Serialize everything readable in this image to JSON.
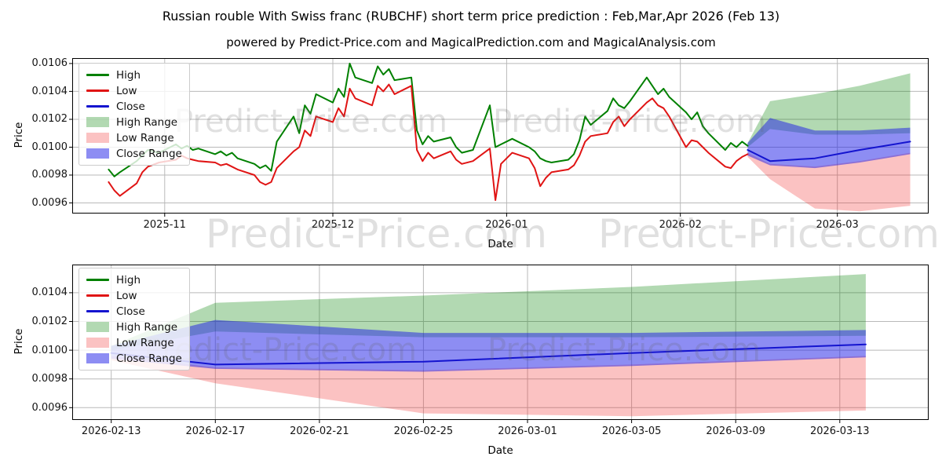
{
  "title": "Russian rouble With Swiss franc (RUBCHF) short term price prediction : Feb,Mar,Apr 2026 (Feb 13)",
  "subtitle": "powered by Predict-Price.com and MagicalPrediction.com and MagicalAnalysis.com",
  "watermark_text": "Predict-Price.com",
  "colors": {
    "high_line": "#008000",
    "low_line": "#e01414",
    "close_line": "#1414cf",
    "high_band": "rgba(0,128,0,0.30)",
    "low_band": "rgba(242,30,30,0.27)",
    "close_band": "rgba(28,28,232,0.50)",
    "grid": "#b9b9b9",
    "spine": "#000000"
  },
  "legend": {
    "items": [
      {
        "label": "High",
        "type": "line",
        "color": "#008000"
      },
      {
        "label": "Low",
        "type": "line",
        "color": "#e01414"
      },
      {
        "label": "Close",
        "type": "line",
        "color": "#1414cf"
      },
      {
        "label": "High Range",
        "type": "patch",
        "color": "rgba(0,128,0,0.30)"
      },
      {
        "label": "Low Range",
        "type": "patch",
        "color": "rgba(242,30,30,0.27)"
      },
      {
        "label": "Close Range",
        "type": "patch",
        "color": "rgba(28,28,232,0.50)"
      }
    ]
  },
  "chart_data": [
    {
      "type": "line",
      "name": "price-history-with-forecast",
      "xlabel": "Date",
      "ylabel": "Price",
      "grid": true,
      "legend_position": "upper left",
      "xdomain": [
        "2025-10-15T12:00:00Z",
        "2026-03-17T07:00:00Z"
      ],
      "ydomain": [
        0.009524,
        0.010639
      ],
      "yticks": [
        0.0096,
        0.0098,
        0.01,
        0.0102,
        0.0104,
        0.0106
      ],
      "ytick_labels": [
        "0.0096",
        "0.0098",
        "0.0100",
        "0.0102",
        "0.0104",
        "0.0106"
      ],
      "xticks": [
        "2025-11-01",
        "2025-12-01",
        "2026-01-01",
        "2026-02-01",
        "2026-03-01"
      ],
      "xtick_labels": [
        "2025-11",
        "2025-12",
        "2026-01",
        "2026-02",
        "2026-03"
      ],
      "series": {
        "history": {
          "dates": [
            "2025-10-22",
            "2025-10-23",
            "2025-10-24",
            "2025-10-27",
            "2025-10-28",
            "2025-10-29",
            "2025-10-31",
            "2025-11-03",
            "2025-11-04",
            "2025-11-05",
            "2025-11-06",
            "2025-11-07",
            "2025-11-10",
            "2025-11-11",
            "2025-11-12",
            "2025-11-13",
            "2025-11-14",
            "2025-11-17",
            "2025-11-18",
            "2025-11-19",
            "2025-11-20",
            "2025-11-21",
            "2025-11-24",
            "2025-11-25",
            "2025-11-26",
            "2025-11-27",
            "2025-11-28",
            "2025-12-01",
            "2025-12-02",
            "2025-12-03",
            "2025-12-04",
            "2025-12-05",
            "2025-12-08",
            "2025-12-09",
            "2025-12-10",
            "2025-12-11",
            "2025-12-12",
            "2025-12-15",
            "2025-12-16",
            "2025-12-17",
            "2025-12-18",
            "2025-12-19",
            "2025-12-22",
            "2025-12-23",
            "2025-12-24",
            "2025-12-26",
            "2025-12-29",
            "2025-12-30",
            "2025-12-31",
            "2026-01-02",
            "2026-01-05",
            "2026-01-06",
            "2026-01-07",
            "2026-01-08",
            "2026-01-09",
            "2026-01-12",
            "2026-01-13",
            "2026-01-14",
            "2026-01-15",
            "2026-01-16",
            "2026-01-19",
            "2026-01-20",
            "2026-01-21",
            "2026-01-22",
            "2026-01-23",
            "2026-01-26",
            "2026-01-27",
            "2026-01-28",
            "2026-01-29",
            "2026-01-30",
            "2026-02-02",
            "2026-02-03",
            "2026-02-04",
            "2026-02-05",
            "2026-02-06",
            "2026-02-09",
            "2026-02-10",
            "2026-02-11",
            "2026-02-12",
            "2026-02-13"
          ],
          "high": [
            0.00984,
            0.00979,
            0.00982,
            0.0099,
            0.00994,
            0.00998,
            0.00996,
            0.01002,
            0.00999,
            0.01001,
            0.00998,
            0.00999,
            0.00995,
            0.00997,
            0.00994,
            0.00996,
            0.00992,
            0.00988,
            0.00985,
            0.00987,
            0.00983,
            0.01004,
            0.01022,
            0.0101,
            0.0103,
            0.01024,
            0.01038,
            0.01032,
            0.01042,
            0.01036,
            0.0106,
            0.0105,
            0.01046,
            0.01058,
            0.01052,
            0.01056,
            0.01048,
            0.0105,
            0.01012,
            0.01002,
            0.01008,
            0.01004,
            0.01007,
            0.01,
            0.00996,
            0.00998,
            0.0103,
            0.01,
            0.01002,
            0.01006,
            0.01,
            0.00997,
            0.00992,
            0.0099,
            0.00989,
            0.00991,
            0.00995,
            0.01005,
            0.01022,
            0.01016,
            0.01026,
            0.01035,
            0.0103,
            0.01028,
            0.01033,
            0.0105,
            0.01044,
            0.01038,
            0.01042,
            0.01036,
            0.01025,
            0.0102,
            0.01025,
            0.01015,
            0.0101,
            0.00998,
            0.01003,
            0.01,
            0.01004,
            0.01001
          ],
          "low": [
            0.00975,
            0.00969,
            0.00965,
            0.00974,
            0.00982,
            0.00986,
            0.00989,
            0.00991,
            0.00994,
            0.00992,
            0.00991,
            0.0099,
            0.00989,
            0.00987,
            0.00988,
            0.00986,
            0.00984,
            0.0098,
            0.00975,
            0.00973,
            0.00975,
            0.00985,
            0.00997,
            0.01,
            0.01012,
            0.01008,
            0.01022,
            0.01018,
            0.01028,
            0.01022,
            0.01042,
            0.01035,
            0.0103,
            0.01044,
            0.0104,
            0.01045,
            0.01038,
            0.01044,
            0.00998,
            0.0099,
            0.00996,
            0.00992,
            0.00997,
            0.00991,
            0.00988,
            0.0099,
            0.00999,
            0.00962,
            0.00988,
            0.00996,
            0.00992,
            0.00985,
            0.00972,
            0.00978,
            0.00982,
            0.00984,
            0.00987,
            0.00994,
            0.01004,
            0.01008,
            0.0101,
            0.01018,
            0.01022,
            0.01015,
            0.0102,
            0.01032,
            0.01035,
            0.0103,
            0.01028,
            0.01022,
            0.01,
            0.01005,
            0.01004,
            0.01,
            0.00996,
            0.00986,
            0.00985,
            0.0099,
            0.00993,
            0.00995
          ]
        },
        "forecast": {
          "dates": [
            "2026-02-13",
            "2026-02-17",
            "2026-02-25",
            "2026-03-05",
            "2026-03-14"
          ],
          "close": [
            0.00998,
            0.0099,
            0.00992,
            0.00998,
            0.01004
          ],
          "close_range_upper": [
            0.01003,
            0.01021,
            0.01012,
            0.01012,
            0.01014
          ],
          "close_range_lower": [
            0.00994,
            0.00987,
            0.00985,
            0.00989,
            0.00995
          ],
          "high_range_upper": [
            0.01003,
            0.01033,
            0.01038,
            0.01044,
            0.01053
          ],
          "high_range_lower": [
            0.01,
            0.01013,
            0.01009,
            0.01009,
            0.0101
          ],
          "low_range_upper": [
            0.00996,
            0.00988,
            0.00986,
            0.0099,
            0.00996
          ],
          "low_range_lower": [
            0.00993,
            0.00977,
            0.00956,
            0.00954,
            0.00958
          ]
        }
      }
    },
    {
      "type": "line",
      "name": "forecast-detail",
      "xlabel": "Date",
      "ylabel": "Price",
      "grid": true,
      "legend_position": "upper left",
      "xdomain": [
        "2026-02-11T12:00:00Z",
        "2026-03-16T10:00:00Z"
      ],
      "ydomain": [
        0.009514,
        0.010596
      ],
      "yticks": [
        0.0096,
        0.0098,
        0.01,
        0.0102,
        0.0104
      ],
      "ytick_labels": [
        "0.0096",
        "0.0098",
        "0.0100",
        "0.0102",
        "0.0104"
      ],
      "xticks": [
        "2026-02-13",
        "2026-02-17",
        "2026-02-21",
        "2026-02-25",
        "2026-03-01",
        "2026-03-05",
        "2026-03-09",
        "2026-03-13"
      ],
      "xtick_labels": [
        "2026-02-13",
        "2026-02-17",
        "2026-02-21",
        "2026-02-25",
        "2026-03-01",
        "2026-03-05",
        "2026-03-09",
        "2026-03-13"
      ],
      "series": {
        "forecast": {
          "dates": [
            "2026-02-13",
            "2026-02-17",
            "2026-02-25",
            "2026-03-05",
            "2026-03-14"
          ],
          "close": [
            0.00998,
            0.0099,
            0.00992,
            0.00998,
            0.01004
          ],
          "close_range_upper": [
            0.01003,
            0.01021,
            0.01012,
            0.01012,
            0.01014
          ],
          "close_range_lower": [
            0.00994,
            0.00987,
            0.00985,
            0.00989,
            0.00995
          ],
          "high_range_upper": [
            0.01003,
            0.01033,
            0.01038,
            0.01044,
            0.01053
          ],
          "high_range_lower": [
            0.01,
            0.01013,
            0.01009,
            0.01009,
            0.0101
          ],
          "low_range_upper": [
            0.00996,
            0.00988,
            0.00986,
            0.0099,
            0.00996
          ],
          "low_range_lower": [
            0.00993,
            0.00977,
            0.00956,
            0.00954,
            0.00958
          ]
        }
      }
    }
  ]
}
